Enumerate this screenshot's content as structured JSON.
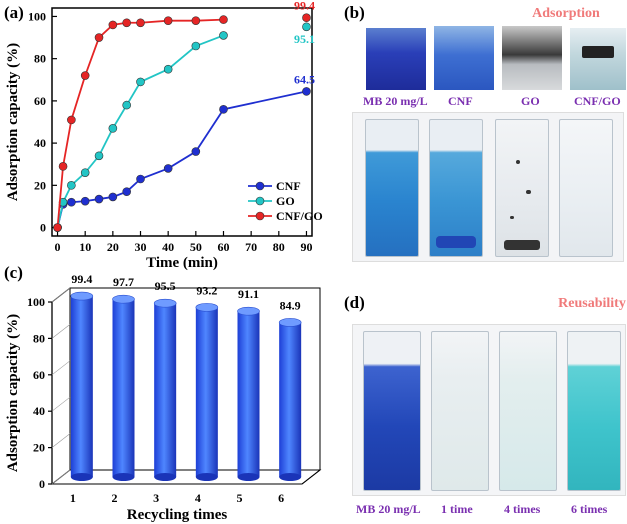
{
  "panels": {
    "a": {
      "label": "(a)"
    },
    "b": {
      "label": "(b)",
      "title": "Adsorption",
      "top_captions": [
        "MB 20 mg/L",
        "CNF",
        "GO",
        "CNF/GO"
      ]
    },
    "c": {
      "label": "(c)"
    },
    "d": {
      "label": "(d)",
      "title": "Reusability",
      "captions": [
        "MB 20 mg/L",
        "1 time",
        "4 times",
        "6 times"
      ]
    }
  },
  "colors": {
    "cnf": "#1f2fd0",
    "go": "#22c5c5",
    "cnfgo": "#e52525",
    "title_pink": "#f07a7a",
    "caption_purple": "#7a2fb0",
    "bar": "#2a5cf0"
  },
  "chart_data": [
    {
      "type": "line",
      "xlabel": "Time (min)",
      "ylabel": "Adsorption capacity (%)",
      "xlim": [
        -2,
        92
      ],
      "ylim": [
        -4,
        104
      ],
      "xticks": [
        0,
        10,
        20,
        30,
        40,
        50,
        60,
        70,
        80,
        90
      ],
      "yticks": [
        0,
        20,
        40,
        60,
        80,
        100
      ],
      "series": [
        {
          "name": "CNF",
          "color": "#1f2fd0",
          "x": [
            0,
            2,
            5,
            10,
            15,
            20,
            25,
            30,
            40,
            50,
            60,
            90
          ],
          "y": [
            0,
            11,
            12,
            12.5,
            13.5,
            14.5,
            17,
            23,
            28,
            36,
            56,
            64.5
          ],
          "end_label": "64.5"
        },
        {
          "name": "GO",
          "color": "#22c5c5",
          "x": [
            0,
            2,
            5,
            10,
            15,
            20,
            25,
            30,
            40,
            50,
            60,
            90
          ],
          "y": [
            0,
            12,
            20,
            26,
            34,
            47,
            58,
            69,
            75,
            86,
            91,
            95.1
          ],
          "end_label": "95.1"
        },
        {
          "name": "CNF/GO",
          "color": "#e52525",
          "x": [
            0,
            2,
            5,
            10,
            15,
            20,
            25,
            30,
            40,
            50,
            60,
            90
          ],
          "y": [
            0,
            29,
            51,
            72,
            90,
            96,
            97,
            97,
            98,
            98,
            98.5,
            99.4
          ],
          "end_label": "99.4"
        }
      ],
      "legend": {
        "position": "bottom-right",
        "entries": [
          "CNF",
          "GO",
          "CNF/GO"
        ]
      }
    },
    {
      "type": "bar",
      "style": "3d-cylinder",
      "xlabel": "Recycling times",
      "ylabel": "Adsorption capacity (%)",
      "ylim": [
        0,
        100
      ],
      "yticks": [
        0,
        20,
        40,
        60,
        80,
        100
      ],
      "categories": [
        "1",
        "2",
        "3",
        "4",
        "5",
        "6"
      ],
      "values": [
        99.4,
        97.7,
        95.5,
        93.2,
        91.1,
        84.9
      ],
      "data_labels": [
        "99.4",
        "97.7",
        "95.5",
        "93.2",
        "91.1",
        "84.9"
      ]
    }
  ]
}
